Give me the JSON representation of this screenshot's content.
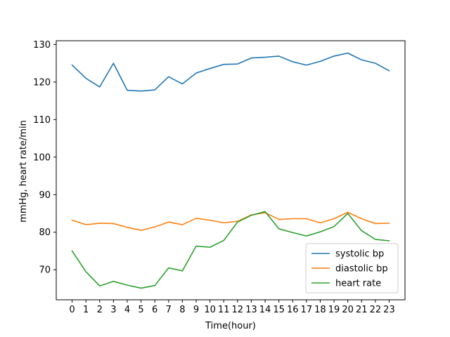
{
  "chart_data": {
    "type": "line",
    "title": "",
    "xlabel": "Time(hour)",
    "ylabel": "mmHg, heart rate/min",
    "x": [
      0,
      1,
      2,
      3,
      4,
      5,
      6,
      7,
      8,
      9,
      10,
      11,
      12,
      13,
      14,
      15,
      16,
      17,
      18,
      19,
      20,
      21,
      22,
      23
    ],
    "xlim": [
      -1.15,
      24.15
    ],
    "ylim": [
      62,
      131
    ],
    "yticks": [
      70,
      80,
      90,
      100,
      110,
      120,
      130
    ],
    "grid": false,
    "legend_position": "lower-right",
    "series": [
      {
        "name": "systolic bp",
        "color": "#1f77b4",
        "values": [
          124.5,
          121.0,
          118.7,
          125.0,
          117.8,
          117.6,
          117.9,
          121.4,
          119.5,
          122.4,
          123.6,
          124.7,
          124.8,
          126.4,
          126.6,
          126.9,
          125.4,
          124.5,
          125.5,
          126.9,
          127.7,
          125.9,
          125.0,
          123.0
        ]
      },
      {
        "name": "diastolic bp",
        "color": "#ff7f0e",
        "values": [
          83.2,
          82.0,
          82.4,
          82.3,
          81.3,
          80.5,
          81.4,
          82.7,
          82.0,
          83.7,
          83.2,
          82.5,
          82.9,
          84.6,
          85.2,
          83.4,
          83.6,
          83.6,
          82.5,
          83.6,
          85.3,
          83.6,
          82.3,
          82.4
        ]
      },
      {
        "name": "heart rate",
        "color": "#2ca02c",
        "values": [
          75.0,
          69.5,
          65.7,
          66.9,
          65.9,
          65.1,
          65.8,
          70.5,
          69.7,
          76.3,
          76.0,
          77.8,
          82.7,
          84.5,
          85.5,
          80.9,
          79.9,
          79.0,
          80.1,
          81.5,
          85.0,
          80.4,
          78.1,
          77.7
        ]
      }
    ]
  }
}
